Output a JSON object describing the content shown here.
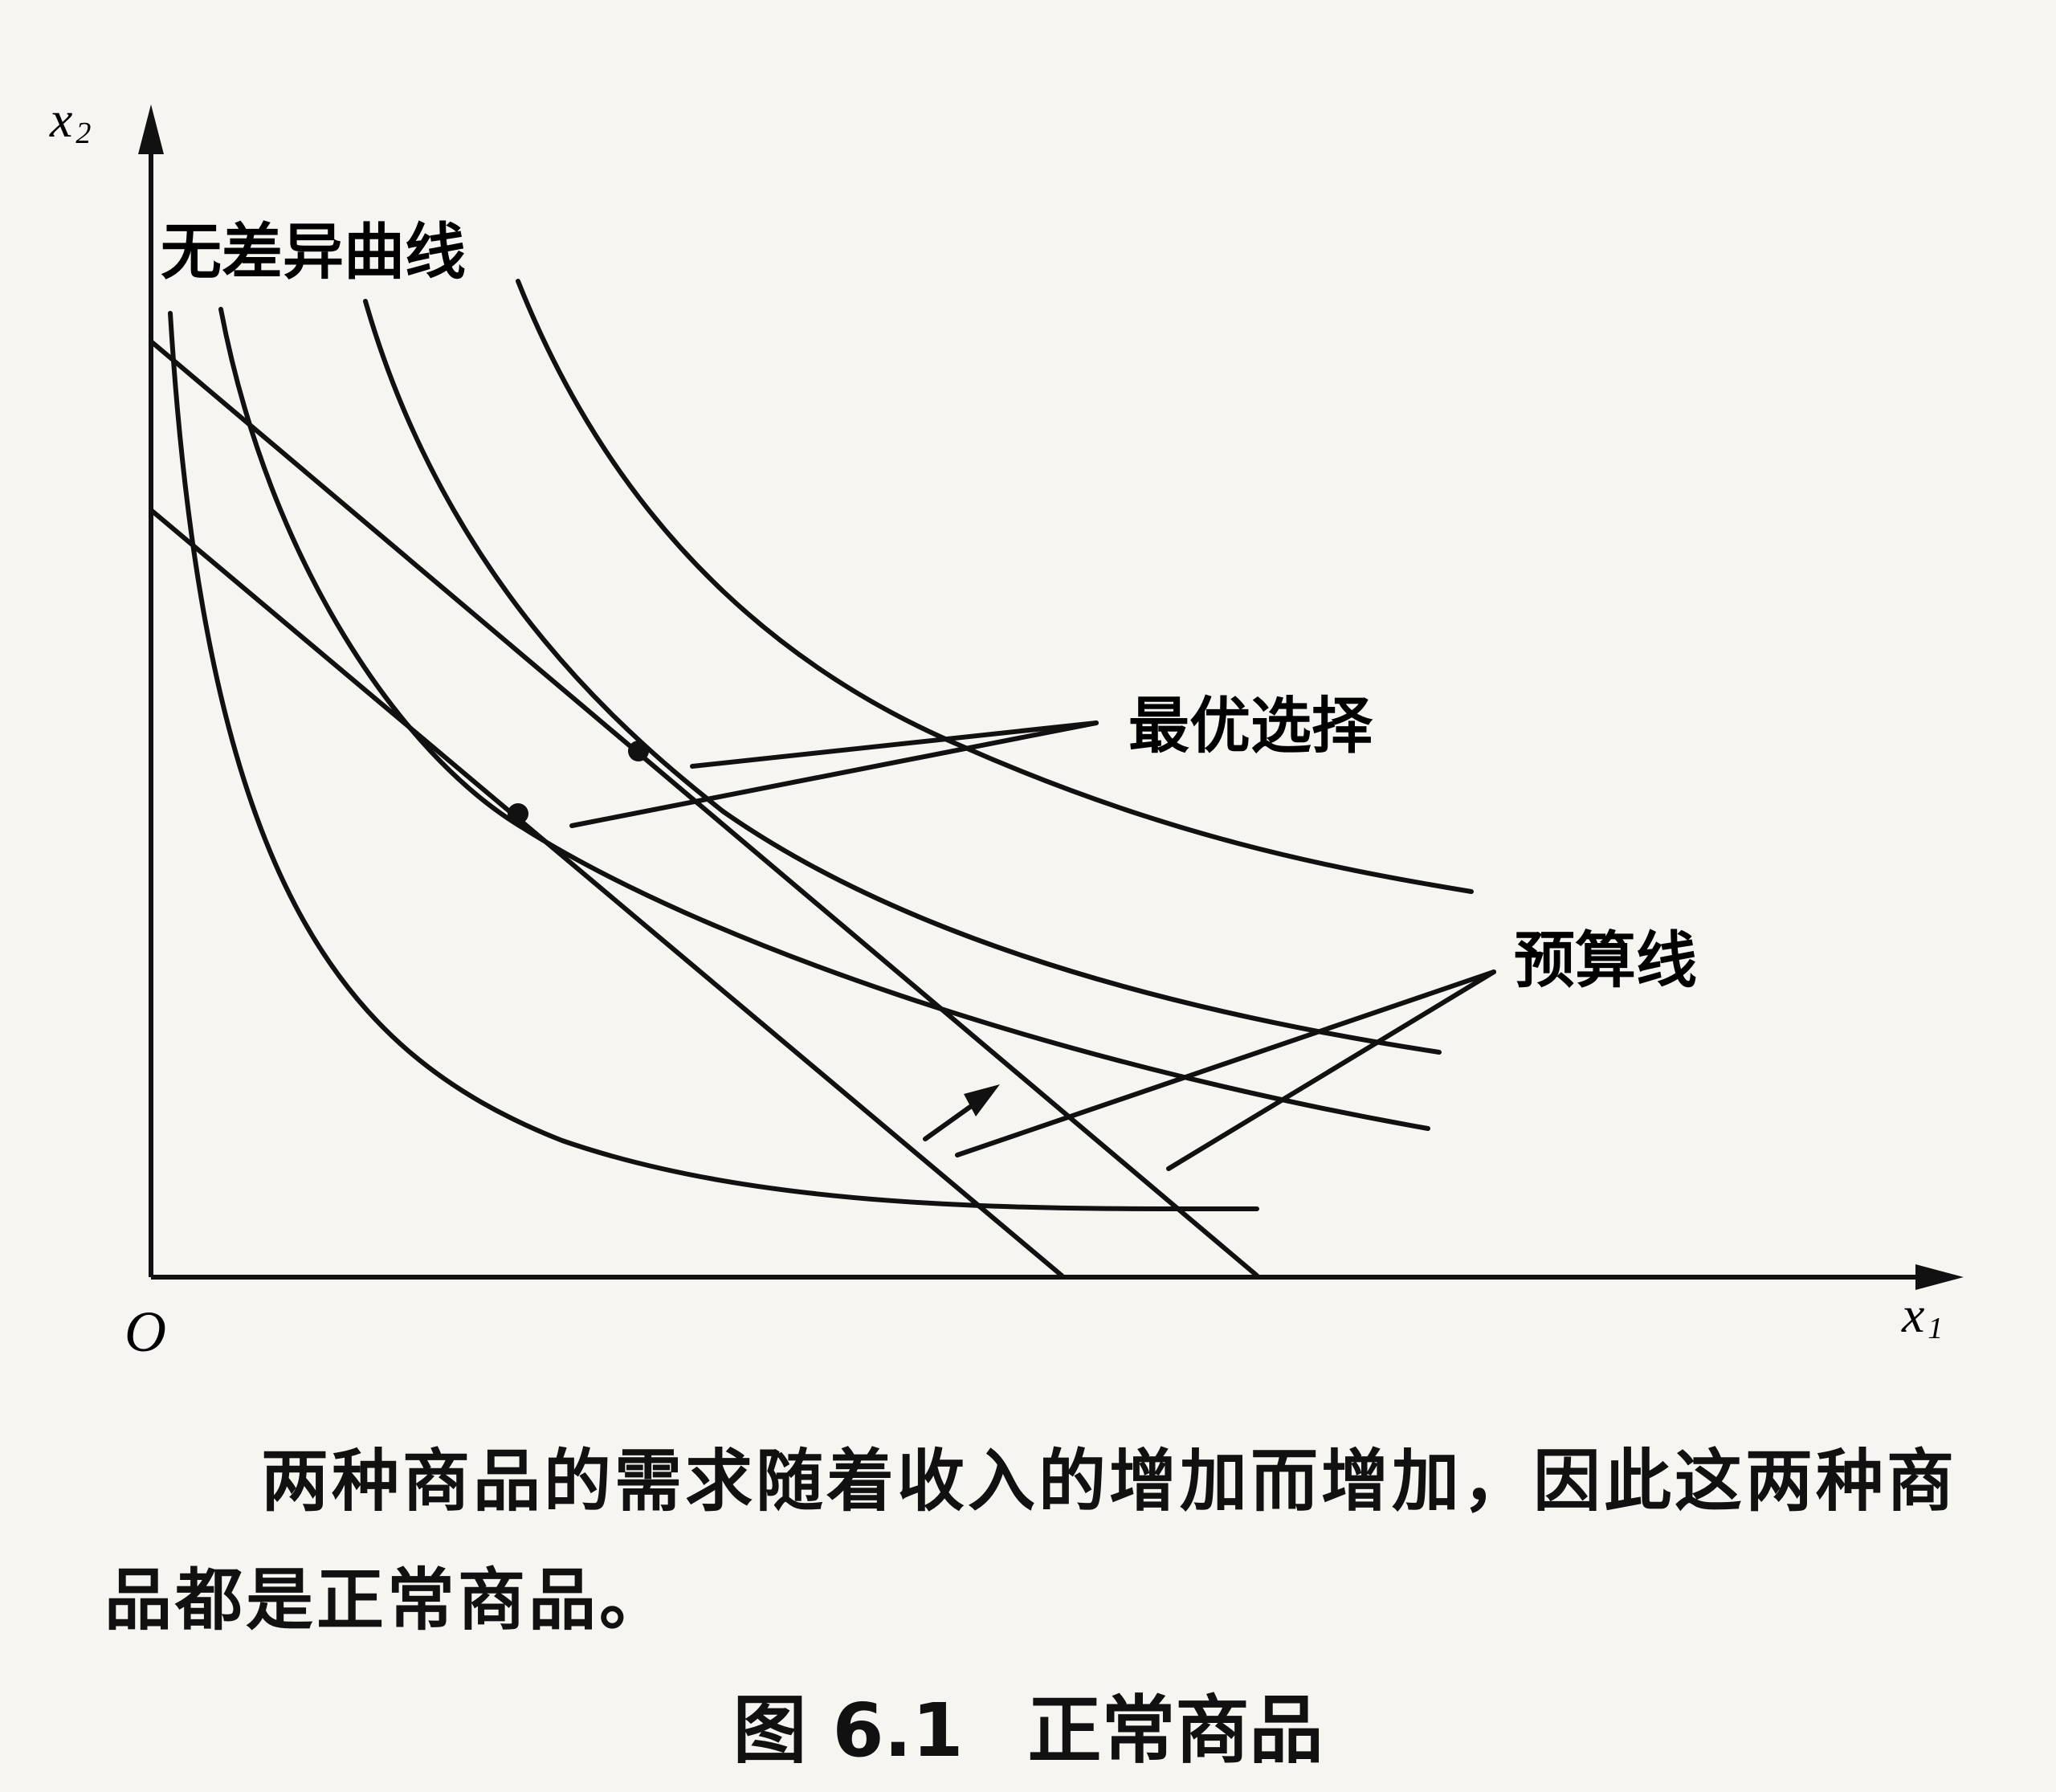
{
  "axes": {
    "y_label": "x",
    "y_sub": "2",
    "x_label": "x",
    "x_sub": "1",
    "origin": "O"
  },
  "labels": {
    "indifference_curves": "无差异曲线",
    "optimal_choice": "最优选择",
    "budget_line": "预算线"
  },
  "caption": {
    "body": "两种商品的需求随着收入的增加而增加，因此这两种商品都是正常商品。",
    "figure_number": "图 6.1",
    "figure_title": "正常商品"
  }
}
